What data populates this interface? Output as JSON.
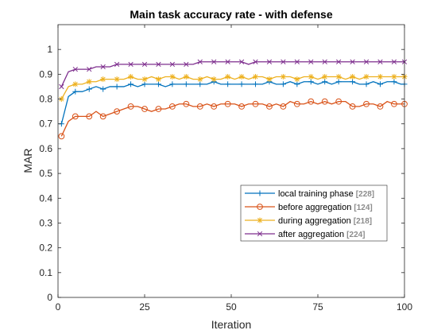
{
  "chart_data": {
    "type": "line",
    "title": "Main task accuracy rate - with defense",
    "xlabel": "Iteration",
    "ylabel": "MAR",
    "xlim": [
      0,
      100
    ],
    "ylim": [
      0,
      1.1
    ],
    "xticks": [
      0,
      25,
      50,
      75,
      100
    ],
    "yticks": [
      0,
      0.1,
      0.2,
      0.3,
      0.4,
      0.5,
      0.6,
      0.7,
      0.8,
      0.9,
      1
    ],
    "grid": false,
    "box": true,
    "legend_location": "lower-right",
    "x": [
      1,
      3,
      5,
      7,
      9,
      11,
      13,
      15,
      17,
      19,
      21,
      23,
      25,
      27,
      29,
      31,
      33,
      35,
      37,
      39,
      41,
      43,
      45,
      47,
      49,
      51,
      53,
      55,
      57,
      59,
      61,
      63,
      65,
      67,
      69,
      71,
      73,
      75,
      77,
      79,
      81,
      83,
      85,
      87,
      89,
      91,
      93,
      95,
      97,
      99,
      100
    ],
    "series": [
      {
        "name": "local training phase",
        "count": "[228]",
        "color": "#0072BD",
        "marker": "plus",
        "values": [
          0.7,
          0.81,
          0.83,
          0.83,
          0.84,
          0.85,
          0.84,
          0.85,
          0.85,
          0.85,
          0.86,
          0.85,
          0.86,
          0.86,
          0.86,
          0.85,
          0.86,
          0.86,
          0.86,
          0.86,
          0.86,
          0.86,
          0.87,
          0.86,
          0.86,
          0.86,
          0.86,
          0.86,
          0.86,
          0.86,
          0.87,
          0.86,
          0.86,
          0.87,
          0.86,
          0.87,
          0.87,
          0.86,
          0.87,
          0.86,
          0.87,
          0.87,
          0.87,
          0.86,
          0.86,
          0.87,
          0.86,
          0.87,
          0.87,
          0.86,
          0.86
        ]
      },
      {
        "name": "before aggregation",
        "count": "[124]",
        "color": "#D95319",
        "marker": "circle",
        "values": [
          0.65,
          0.71,
          0.73,
          0.73,
          0.73,
          0.75,
          0.73,
          0.74,
          0.75,
          0.76,
          0.77,
          0.77,
          0.76,
          0.75,
          0.76,
          0.76,
          0.77,
          0.78,
          0.78,
          0.77,
          0.77,
          0.78,
          0.77,
          0.78,
          0.78,
          0.78,
          0.77,
          0.78,
          0.78,
          0.78,
          0.77,
          0.78,
          0.77,
          0.79,
          0.78,
          0.78,
          0.79,
          0.78,
          0.79,
          0.78,
          0.79,
          0.79,
          0.77,
          0.77,
          0.78,
          0.78,
          0.77,
          0.79,
          0.78,
          0.78,
          0.78
        ]
      },
      {
        "name": "during aggregation",
        "count": "[218]",
        "color": "#EDB120",
        "marker": "asterisk",
        "values": [
          0.8,
          0.85,
          0.86,
          0.86,
          0.87,
          0.87,
          0.88,
          0.88,
          0.88,
          0.88,
          0.89,
          0.88,
          0.88,
          0.89,
          0.88,
          0.89,
          0.89,
          0.88,
          0.89,
          0.88,
          0.88,
          0.89,
          0.88,
          0.88,
          0.89,
          0.88,
          0.89,
          0.88,
          0.89,
          0.89,
          0.88,
          0.89,
          0.89,
          0.89,
          0.88,
          0.89,
          0.89,
          0.88,
          0.89,
          0.89,
          0.89,
          0.88,
          0.89,
          0.88,
          0.89,
          0.89,
          0.89,
          0.89,
          0.89,
          0.89,
          0.89
        ]
      },
      {
        "name": "after aggregation",
        "count": "[224]",
        "color": "#7E2F8E",
        "marker": "cross",
        "values": [
          0.85,
          0.91,
          0.92,
          0.92,
          0.92,
          0.93,
          0.93,
          0.93,
          0.94,
          0.94,
          0.94,
          0.94,
          0.94,
          0.94,
          0.94,
          0.94,
          0.94,
          0.94,
          0.94,
          0.94,
          0.95,
          0.95,
          0.95,
          0.95,
          0.95,
          0.95,
          0.95,
          0.94,
          0.95,
          0.95,
          0.95,
          0.95,
          0.95,
          0.95,
          0.95,
          0.95,
          0.95,
          0.95,
          0.95,
          0.95,
          0.95,
          0.95,
          0.95,
          0.95,
          0.95,
          0.95,
          0.95,
          0.95,
          0.95,
          0.95,
          0.95
        ]
      }
    ]
  }
}
